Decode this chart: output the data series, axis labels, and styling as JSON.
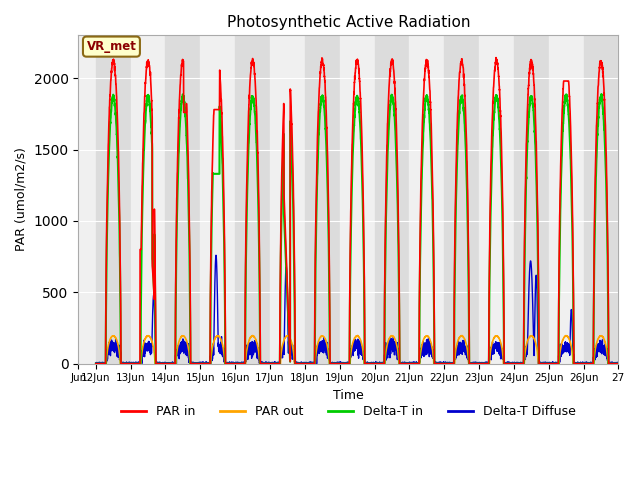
{
  "title": "Photosynthetic Active Radiation",
  "xlabel": "Time",
  "ylabel": "PAR (umol/m2/s)",
  "ylim": [
    0,
    2300
  ],
  "xlim_start": 11.5,
  "xlim_end": 27.0,
  "xtick_positions": [
    11.5,
    12,
    13,
    14,
    15,
    16,
    17,
    18,
    19,
    20,
    21,
    22,
    23,
    24,
    25,
    26,
    27
  ],
  "xtick_labels": [
    "Jun",
    "12Jun",
    "13Jun",
    "14Jun",
    "15Jun",
    "16Jun",
    "17Jun",
    "18Jun",
    "19Jun",
    "20Jun",
    "21Jun",
    "22Jun",
    "23Jun",
    "24Jun",
    "25Jun",
    "26Jun",
    "27"
  ],
  "annotation_text": "VR_met",
  "annotation_color": "#8B0000",
  "annotation_bg": "#FFFFCC",
  "annotation_border": "#8B6914",
  "bg_color": "#FFFFFF",
  "plot_bg": "#E8E8E8",
  "grid_color": "#FFFFFF",
  "colors": {
    "PAR_in": "#FF0000",
    "PAR_out": "#FFA500",
    "Delta_T_in": "#00CC00",
    "Delta_T_Diffuse": "#0000CD"
  },
  "legend_labels": [
    "PAR in",
    "PAR out",
    "Delta-T in",
    "Delta-T Diffuse"
  ],
  "legend_colors": [
    "#FF0000",
    "#FFA500",
    "#00CC00",
    "#0000CD"
  ],
  "band_colors": [
    "#DCDCDC",
    "#F0F0F0"
  ]
}
